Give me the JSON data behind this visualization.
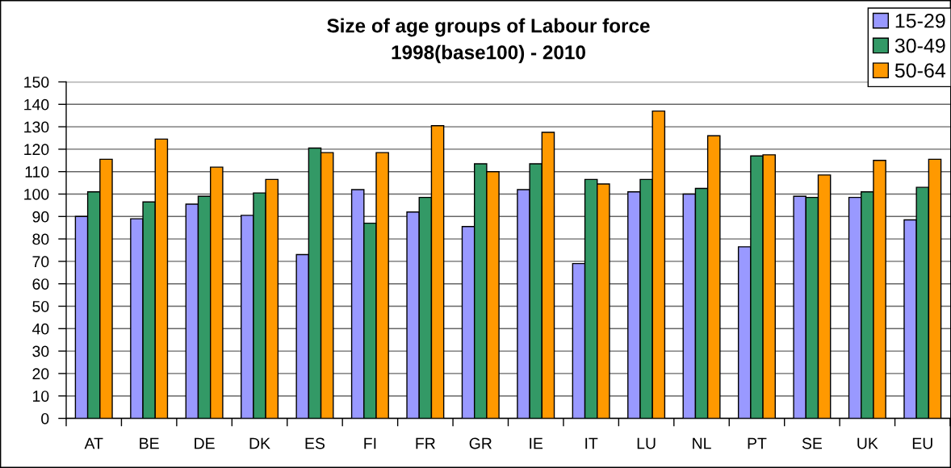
{
  "chart_data": {
    "type": "bar",
    "title": "Size of age groups of Labour force",
    "subtitle": "1998(base100) - 2010",
    "categories": [
      "AT",
      "BE",
      "DE",
      "DK",
      "ES",
      "FI",
      "FR",
      "GR",
      "IE",
      "IT",
      "LU",
      "NL",
      "PT",
      "SE",
      "UK",
      "EU"
    ],
    "series": [
      {
        "name": "15-29",
        "color": "#9999ff",
        "values": [
          90,
          89,
          95.5,
          90.5,
          73,
          102,
          92,
          85.5,
          102,
          69,
          101,
          100,
          76.5,
          99,
          98.5,
          88.5
        ]
      },
      {
        "name": "30-49",
        "color": "#339966",
        "values": [
          101,
          96.5,
          99,
          100.5,
          120.5,
          87,
          98.5,
          113.5,
          113.5,
          106.5,
          106.5,
          102.5,
          117,
          98.5,
          101,
          103
        ]
      },
      {
        "name": "50-64",
        "color": "#ff9900",
        "values": [
          115.5,
          124.5,
          112,
          106.5,
          118.5,
          118.5,
          130.5,
          110,
          127.5,
          104.5,
          137,
          126,
          117.5,
          108.5,
          115,
          115.5
        ]
      }
    ],
    "ylim": [
      0,
      150
    ],
    "yticks": [
      0,
      10,
      20,
      30,
      40,
      50,
      60,
      70,
      80,
      90,
      100,
      110,
      120,
      130,
      140,
      150
    ],
    "grid": "y",
    "legend": "top right"
  }
}
